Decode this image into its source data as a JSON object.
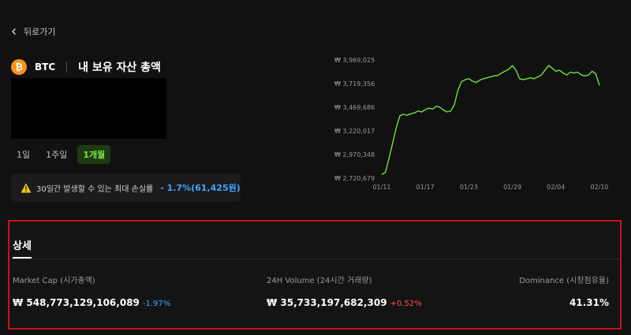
{
  "nav": {
    "back_label": "뒤로가기"
  },
  "asset": {
    "icon_symbol": "₿",
    "ticker": "BTC",
    "holding_title": "내 보유 자산 총액"
  },
  "periods": [
    {
      "label": "1일",
      "active": false
    },
    {
      "label": "1주일",
      "active": false
    },
    {
      "label": "1개월",
      "active": true
    }
  ],
  "max_loss": {
    "label": "30일간 발생할 수 있는 최대 손실률",
    "value": "- 1.7%(61,425원)"
  },
  "chart_data": {
    "type": "line",
    "y_tick_labels": [
      "₩ 3,969,025",
      "₩ 3,719,356",
      "₩ 3,469,686",
      "₩ 3,220,017",
      "₩ 2,970,348",
      "₩ 2,720,679"
    ],
    "x_tick_labels": [
      "01/11",
      "01/17",
      "01/23",
      "01/29",
      "02/04",
      "02/10"
    ],
    "ylim": [
      2720679,
      3969025
    ],
    "xlim": [
      0,
      30
    ],
    "grid": false,
    "series": [
      {
        "color": "#6fe33a",
        "x": [
          0,
          0.5,
          1,
          1.5,
          2,
          2.5,
          3,
          3.5,
          4,
          4.5,
          5,
          5.5,
          6,
          6.5,
          7,
          7.5,
          8,
          8.5,
          9,
          9.5,
          10,
          10.5,
          11,
          11.5,
          12,
          12.5,
          13,
          13.5,
          14,
          14.5,
          15,
          15.5,
          16,
          16.5,
          17,
          17.5,
          18,
          18.5,
          19,
          19.5,
          20,
          20.5,
          21,
          21.5,
          22,
          22.5,
          23,
          23.5,
          24,
          24.5,
          25,
          25.5,
          26,
          26.5,
          27,
          27.5,
          28,
          28.5,
          29,
          29.5,
          30
        ],
        "y": [
          2760000,
          2780000,
          2930000,
          3090000,
          3255000,
          3380000,
          3395000,
          3385000,
          3400000,
          3410000,
          3430000,
          3420000,
          3445000,
          3460000,
          3450000,
          3480000,
          3470000,
          3440000,
          3420000,
          3430000,
          3495000,
          3650000,
          3740000,
          3760000,
          3770000,
          3745000,
          3730000,
          3755000,
          3770000,
          3780000,
          3790000,
          3800000,
          3805000,
          3830000,
          3850000,
          3870000,
          3910000,
          3860000,
          3770000,
          3760000,
          3770000,
          3780000,
          3770000,
          3790000,
          3810000,
          3860000,
          3910000,
          3880000,
          3850000,
          3860000,
          3830000,
          3810000,
          3840000,
          3830000,
          3840000,
          3810000,
          3800000,
          3810000,
          3850000,
          3820000,
          3700000
        ]
      }
    ]
  },
  "details": {
    "tab_label": "상세",
    "market_cap": {
      "label": "Market Cap (시가총액)",
      "value": "₩ 548,773,129,106,089",
      "change": "-1.97%"
    },
    "volume": {
      "label": "24H Volume (24시간 거래량)",
      "value": "₩ 35,733,197,682,309",
      "change": "+0.52%"
    },
    "dominance": {
      "label": "Dominance (시장점유율)",
      "value": "41.31%"
    }
  }
}
